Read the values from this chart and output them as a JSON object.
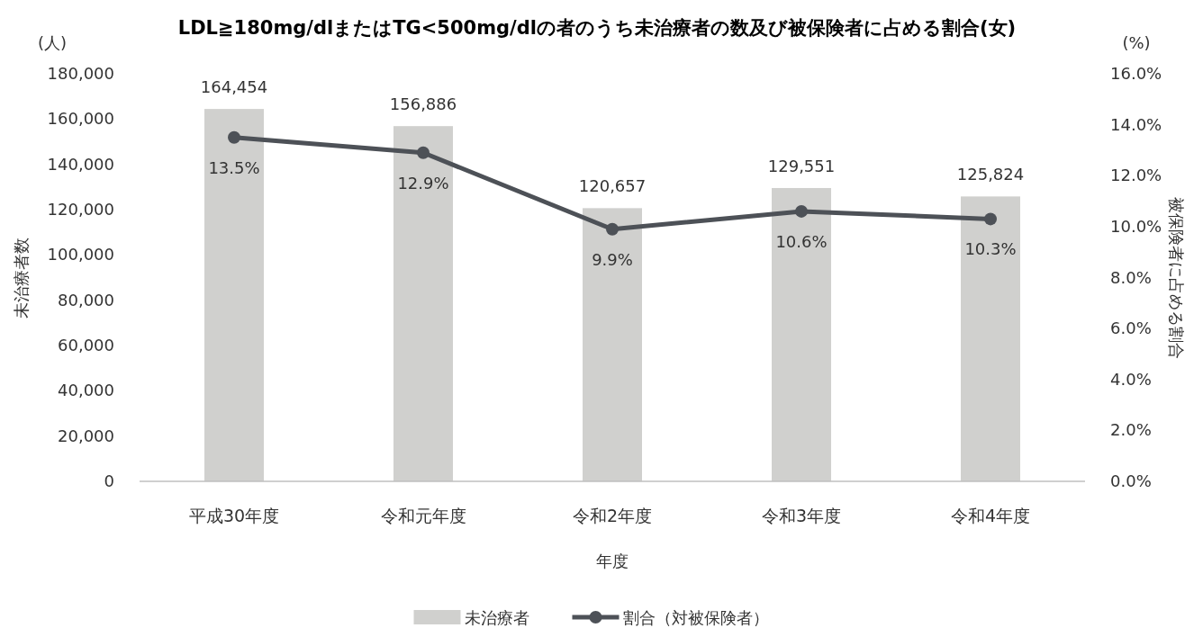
{
  "chart_data": {
    "type": "bar",
    "title": "LDL≧180mg/dlまたはTG<500mg/dlの者のうち未治療者の数及び被保険者に占める割合(女)",
    "xlabel": "年度",
    "ylabel": "未治療者数",
    "y2label": "被保険者に占める割合",
    "annotations": [
      "(人)",
      "(%)"
    ],
    "categories": [
      "平成30年度",
      "令和元年度",
      "令和2年度",
      "令和3年度",
      "令和4年度"
    ],
    "series": [
      {
        "name": "未治療者",
        "color": "#d0d0ce",
        "values": [
          164454,
          156886,
          120657,
          129551,
          125824
        ],
        "value_labels": [
          "164,454",
          "156,886",
          "120,657",
          "129,551",
          "125,824"
        ]
      },
      {
        "name": "割合（対被保険者）",
        "type": "line",
        "axis": "y2",
        "color": "#4d5157",
        "values": [
          13.5,
          12.9,
          9.9,
          10.6,
          10.3
        ],
        "value_labels": [
          "13.5%",
          "12.9%",
          "9.9%",
          "10.6%",
          "10.3%"
        ]
      }
    ],
    "marker": "circle",
    "ylim": [
      0,
      180000
    ],
    "yticks": [
      {
        "value": 0,
        "label": "0"
      },
      {
        "value": 20000,
        "label": "20,000"
      },
      {
        "value": 40000,
        "label": "40,000"
      },
      {
        "value": 60000,
        "label": "60,000"
      },
      {
        "value": 80000,
        "label": "80,000"
      },
      {
        "value": 100000,
        "label": "100,000"
      },
      {
        "value": 120000,
        "label": "120,000"
      },
      {
        "value": 140000,
        "label": "140,000"
      },
      {
        "value": 160000,
        "label": "160,000"
      },
      {
        "value": 180000,
        "label": "180,000"
      }
    ],
    "y2lim": [
      0,
      16
    ],
    "y2ticks": [
      {
        "value": 0,
        "label": "0.0%"
      },
      {
        "value": 2,
        "label": "2.0%"
      },
      {
        "value": 4,
        "label": "4.0%"
      },
      {
        "value": 6,
        "label": "6.0%"
      },
      {
        "value": 8,
        "label": "8.0%"
      },
      {
        "value": 10,
        "label": "10.0%"
      },
      {
        "value": 12,
        "label": "12.0%"
      },
      {
        "value": 14,
        "label": "14.0%"
      },
      {
        "value": 16,
        "label": "16.0%"
      }
    ],
    "legend": "bottom"
  }
}
